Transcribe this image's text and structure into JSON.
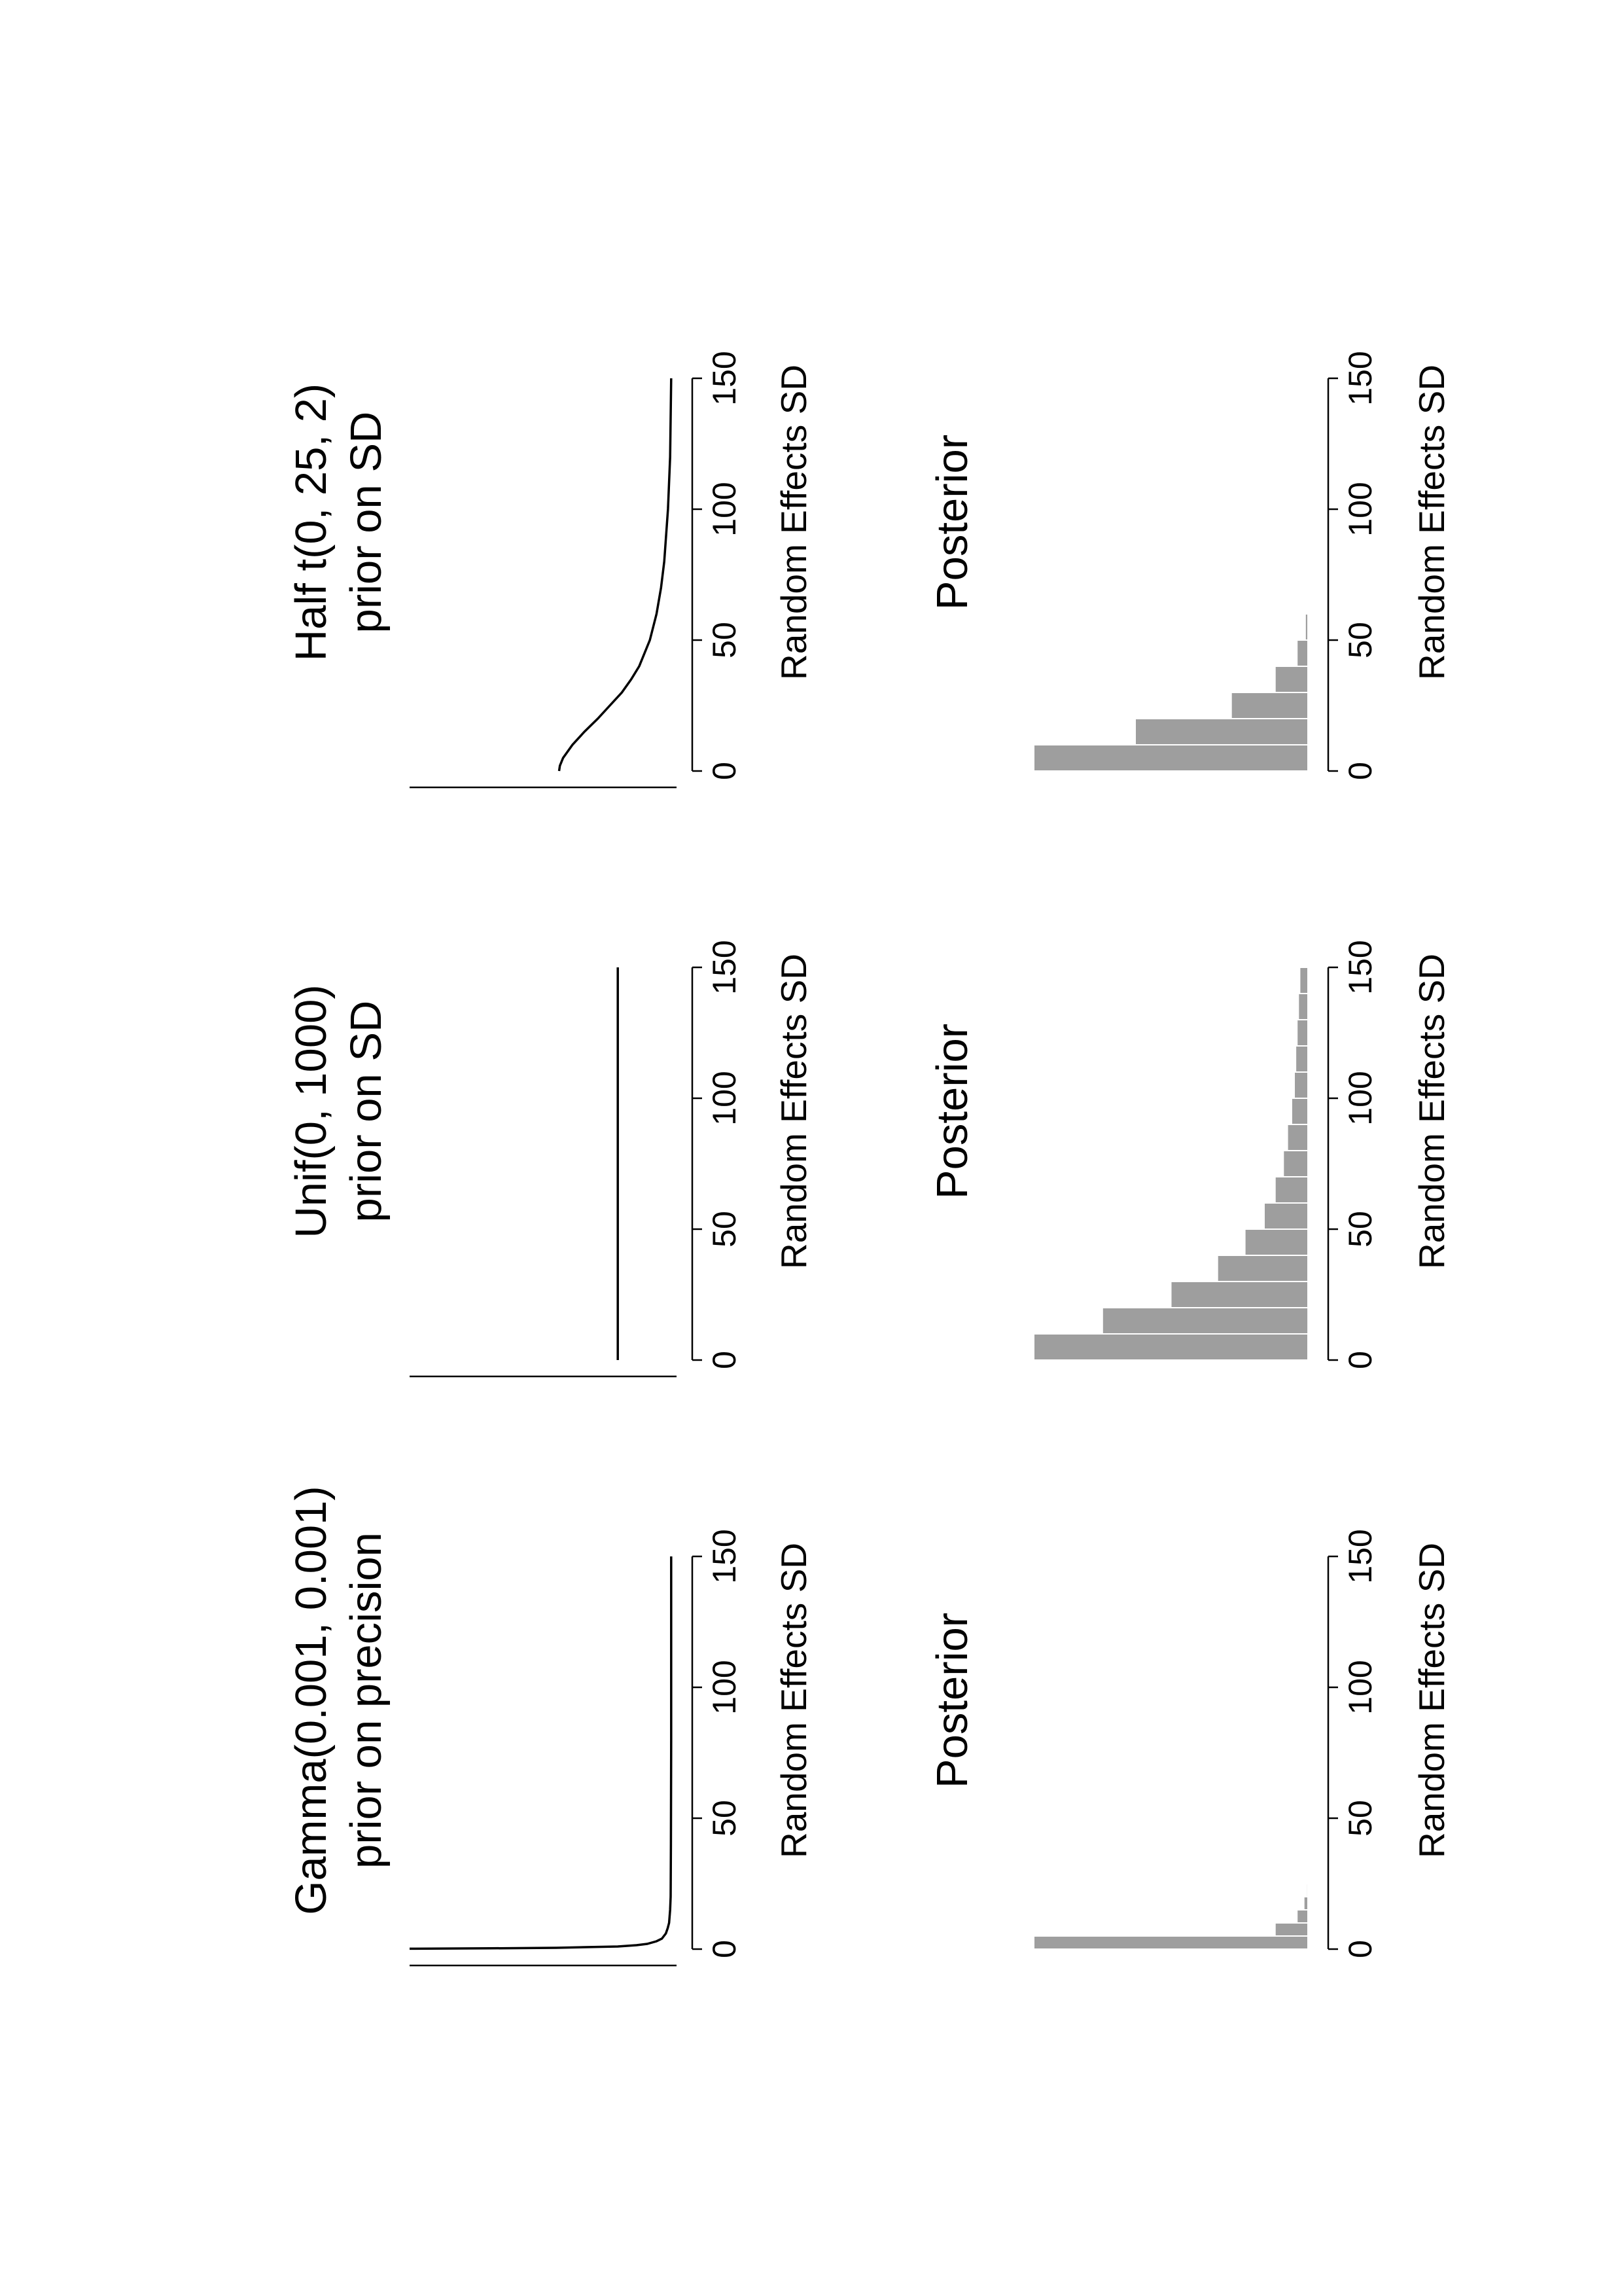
{
  "chart_data": [
    {
      "type": "line",
      "title_lines": [
        "Gamma(0.001, 0.001)",
        "prior on precision"
      ],
      "xlabel": "Random Effects SD",
      "xlim": [
        0,
        150
      ],
      "xticks": [
        0,
        50,
        100,
        150
      ],
      "ylim": [
        0,
        1
      ],
      "x": [
        0.15,
        0.3,
        0.5,
        1,
        1.5,
        2,
        3,
        4,
        6,
        8,
        10,
        15,
        20,
        40,
        80,
        150
      ],
      "y": [
        1.0,
        0.7,
        0.45,
        0.22,
        0.15,
        0.11,
        0.075,
        0.055,
        0.04,
        0.033,
        0.028,
        0.024,
        0.022,
        0.021,
        0.02,
        0.02
      ]
    },
    {
      "type": "line",
      "title_lines": [
        "Unif(0, 1000)",
        "prior on SD"
      ],
      "xlabel": "Random Effects SD",
      "xlim": [
        0,
        150
      ],
      "xticks": [
        0,
        50,
        100,
        150
      ],
      "ylim": [
        0,
        1
      ],
      "x": [
        0,
        150
      ],
      "y": [
        0.22,
        0.22
      ]
    },
    {
      "type": "line",
      "title_lines": [
        "Half t(0, 25, 2)",
        "prior on SD"
      ],
      "xlabel": "Random Effects SD",
      "xlim": [
        0,
        150
      ],
      "xticks": [
        0,
        50,
        100,
        150
      ],
      "ylim": [
        0,
        1
      ],
      "x": [
        0,
        2,
        5,
        10,
        15,
        20,
        25,
        30,
        35,
        40,
        50,
        60,
        70,
        80,
        100,
        120,
        150
      ],
      "y": [
        0.44,
        0.437,
        0.425,
        0.39,
        0.345,
        0.295,
        0.25,
        0.205,
        0.17,
        0.14,
        0.1,
        0.075,
        0.058,
        0.046,
        0.032,
        0.024,
        0.02
      ]
    },
    {
      "type": "bar",
      "title": "Posterior",
      "xlabel": "Random Effects SD",
      "xlim": [
        0,
        150
      ],
      "xticks": [
        0,
        50,
        100,
        150
      ],
      "bin_width": 5,
      "bins_start": [
        0,
        5,
        10,
        15,
        20
      ],
      "values": [
        100,
        12,
        4,
        1.5,
        0.5
      ]
    },
    {
      "type": "bar",
      "title": "Posterior",
      "xlabel": "Random Effects SD",
      "xlim": [
        0,
        150
      ],
      "xticks": [
        0,
        50,
        100,
        150
      ],
      "bin_width": 10,
      "bins_start": [
        0,
        10,
        20,
        30,
        40,
        50,
        60,
        70,
        80,
        90,
        100,
        110,
        120,
        130,
        140
      ],
      "values": [
        100,
        75,
        50,
        33,
        23,
        16,
        12,
        9,
        7.5,
        6,
        5,
        4.5,
        4,
        3.5,
        3
      ]
    },
    {
      "type": "bar",
      "title": "Posterior",
      "xlabel": "Random Effects SD",
      "xlim": [
        0,
        150
      ],
      "xticks": [
        0,
        50,
        100,
        150
      ],
      "bin_width": 10,
      "bins_start": [
        0,
        10,
        20,
        30,
        40,
        50
      ],
      "values": [
        100,
        63,
        28,
        12,
        4,
        1
      ]
    }
  ]
}
